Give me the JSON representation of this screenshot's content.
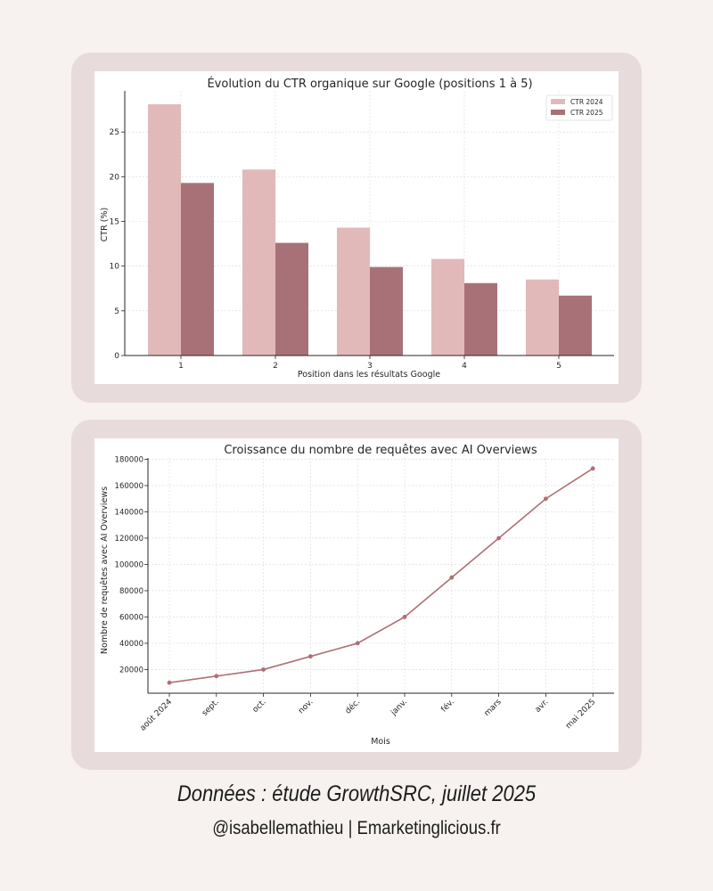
{
  "colors": {
    "page_bg": "#f7f2ef",
    "card_bg": "#e8dbdb",
    "bar_2024": "#e2b9b9",
    "bar_2025": "#a87178",
    "line": "#ae6f75"
  },
  "footer": {
    "source": "Données : étude GrowthSRC, juillet 2025",
    "credit": "@isabellemathieu | Emarketinglicious.fr"
  },
  "chart_data": [
    {
      "type": "bar",
      "title": "Évolution du CTR organique sur Google (positions 1 à 5)",
      "xlabel": "Position dans les résultats Google",
      "ylabel": "CTR (%)",
      "categories": [
        "1",
        "2",
        "3",
        "4",
        "5"
      ],
      "series": [
        {
          "name": "CTR 2024",
          "values": [
            28.1,
            20.8,
            14.3,
            10.8,
            8.5
          ]
        },
        {
          "name": "CTR 2025",
          "values": [
            19.3,
            12.6,
            9.9,
            8.1,
            6.7
          ]
        }
      ],
      "ylim": [
        0,
        29.6
      ],
      "yticks": [
        "0",
        "5",
        "10",
        "15",
        "20",
        "25"
      ],
      "grid": true,
      "legend": "top-right"
    },
    {
      "type": "line",
      "title": "Croissance du nombre de requêtes avec AI Overviews",
      "xlabel": "Mois",
      "ylabel": "Nombre de requêtes avec AI Overviews",
      "categories": [
        "août 2024",
        "sept.",
        "oct.",
        "nov.",
        "déc.",
        "janv.",
        "fév.",
        "mars",
        "avr.",
        "mai 2025"
      ],
      "values": [
        10000,
        15000,
        20000,
        30000,
        40000,
        60000,
        90000,
        120000,
        150000,
        173000
      ],
      "ylim": [
        2000,
        181000
      ],
      "yticks": [
        "20000",
        "40000",
        "60000",
        "80000",
        "100000",
        "120000",
        "140000",
        "160000",
        "180000"
      ],
      "grid": true,
      "legend": "none"
    }
  ]
}
